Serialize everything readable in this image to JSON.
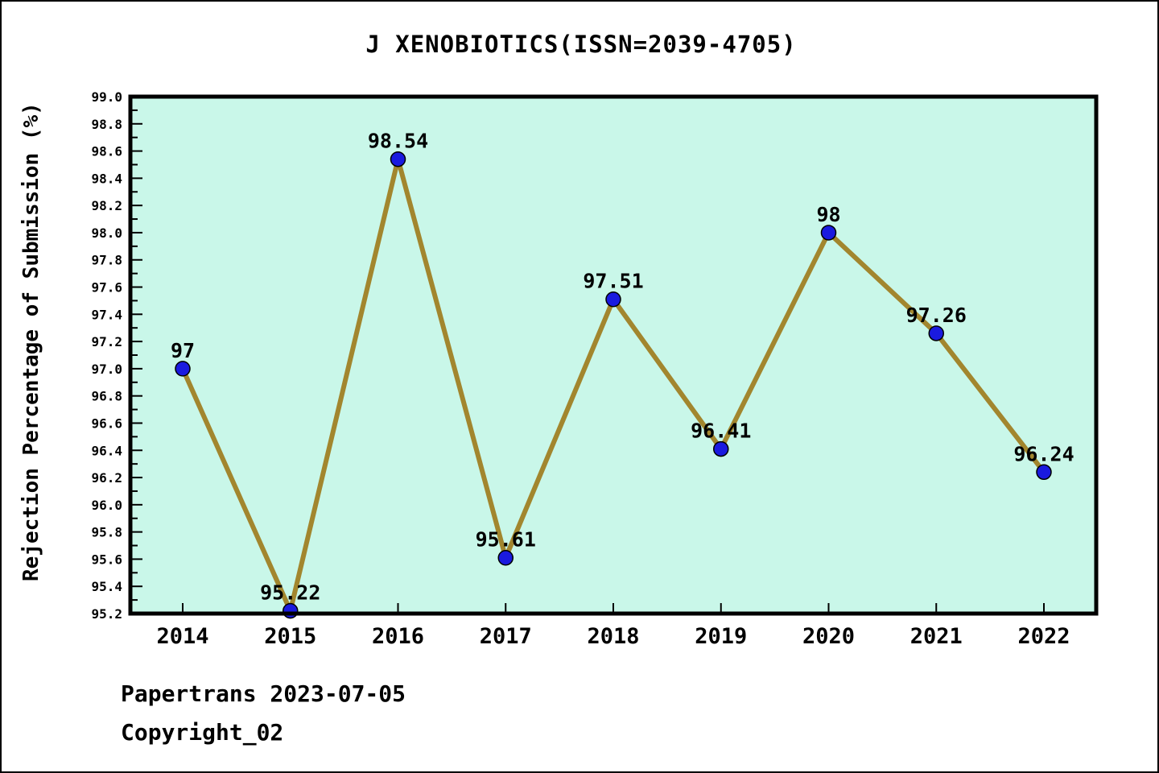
{
  "title": "J XENOBIOTICS(ISSN=2039-4705)",
  "footer": {
    "line1": "Papertrans 2023-07-05",
    "line2": "Copyright_02"
  },
  "chart_data": {
    "type": "line",
    "x": [
      "2014",
      "2015",
      "2016",
      "2017",
      "2018",
      "2019",
      "2020",
      "2021",
      "2022"
    ],
    "values": [
      97,
      95.22,
      98.54,
      95.61,
      97.51,
      96.41,
      98,
      97.26,
      96.24
    ],
    "point_labels": [
      "97",
      "95.22",
      "98.54",
      "95.61",
      "97.51",
      "96.41",
      "98",
      "97.26",
      "96.24"
    ],
    "title": "J XENOBIOTICS(ISSN=2039-4705)",
    "xlabel": "",
    "ylabel": "Rejection Percentage of Submission (%)",
    "ylim": [
      95.2,
      99.0
    ],
    "ytick_step": 0.2,
    "yminor_step": 0.1,
    "grid": false,
    "legend": "none",
    "colors": {
      "line": "#a2862e",
      "marker_fill": "#1a1adf",
      "marker_edge": "#000000",
      "plot_bg": "#c9f7e9",
      "page_bg": "#ffffff",
      "text": "#000000"
    }
  }
}
